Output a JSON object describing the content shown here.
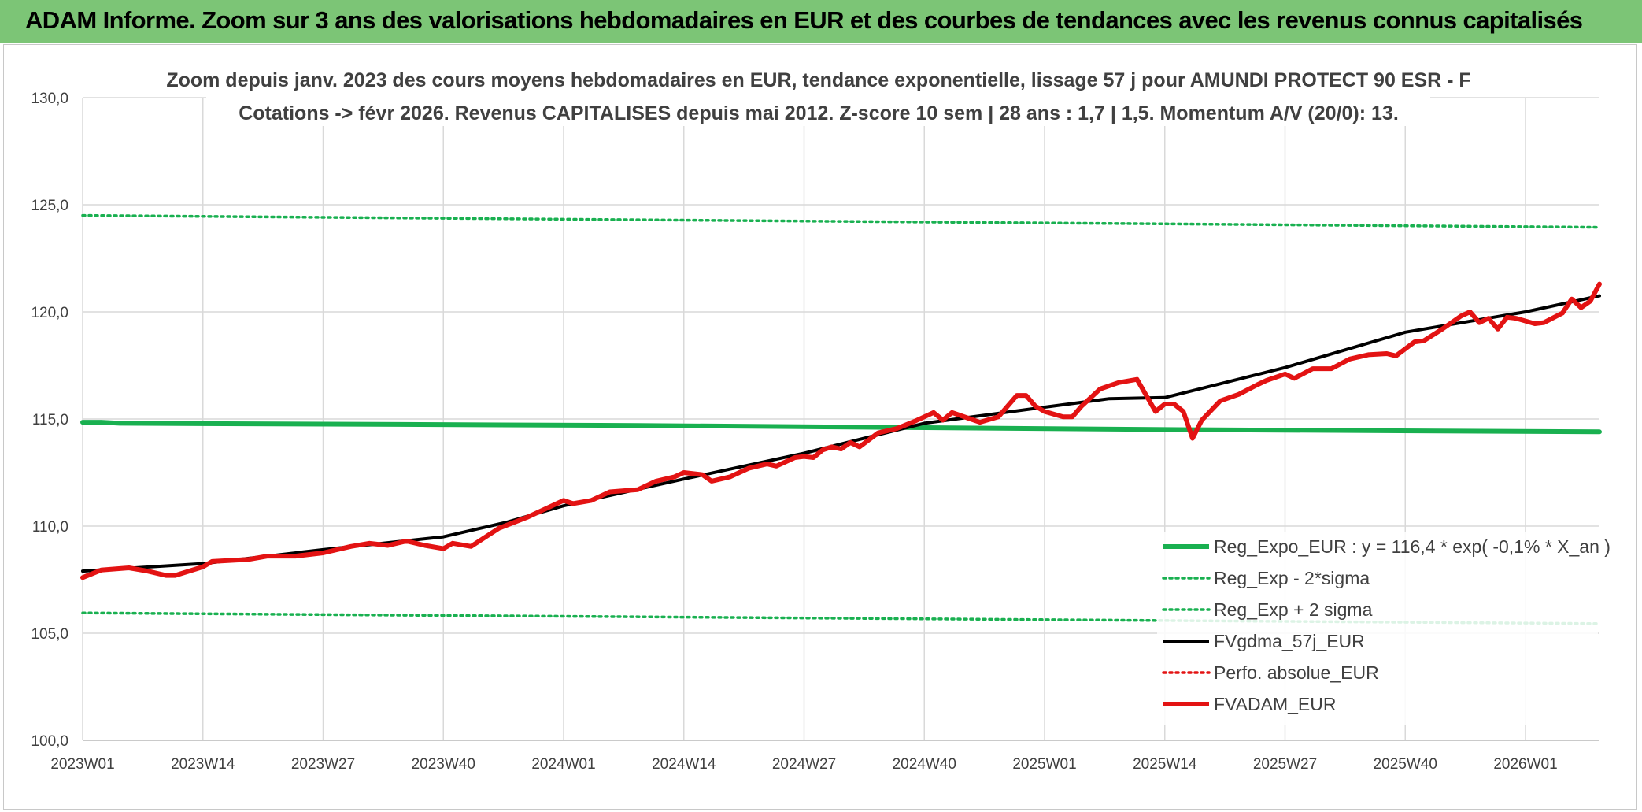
{
  "banner": {
    "title": "ADAM Informe. Zoom sur 3 ans des valorisations hebdomadaires en EUR et des courbes de tendances avec les revenus connus capitalisés"
  },
  "colors": {
    "banner_bg": "#7cc576",
    "trend_green": "#19b050",
    "smooth_black": "#000000",
    "price_red": "#e31313",
    "grid": "#d9d9d9"
  },
  "chart_data": {
    "type": "line",
    "title_line1": "Zoom depuis janv. 2023 des cours moyens hebdomadaires en EUR, tendance exponentielle, lissage 57 j pour AMUNDI PROTECT 90 ESR - F",
    "title_line2": "Cotations -> févr 2026. Revenus CAPITALISES depuis mai 2012. Z-score 10 sem | 28 ans : 1,7 | 1,5. Momentum A/V (20/0): 13.",
    "y_ticks": [
      "100,0",
      "105,0",
      "110,0",
      "115,0",
      "120,0",
      "125,0",
      "130,0"
    ],
    "ylim": [
      100,
      130
    ],
    "x_tick_labels": [
      "2023W01",
      "2023W14",
      "2023W27",
      "2023W40",
      "2024W01",
      "2024W14",
      "2024W27",
      "2024W40",
      "2025W01",
      "2025W14",
      "2025W27",
      "2025W40",
      "2026W01"
    ],
    "x_tick_index": [
      0,
      13,
      26,
      39,
      52,
      65,
      78,
      91,
      104,
      117,
      130,
      143,
      156
    ],
    "n_weeks": 165,
    "legend_position": "bottom-right",
    "grid": true,
    "series": [
      {
        "name": "Reg_Expo_EUR : y = 116,4 * exp( -0,1% *  X_an )",
        "style": "solid-thick",
        "color": "#19b050",
        "points": [
          [
            0,
            114.85
          ],
          [
            2,
            114.85
          ],
          [
            4,
            114.8
          ],
          [
            60,
            114.7
          ],
          [
            120,
            114.5
          ],
          [
            164,
            114.4
          ]
        ]
      },
      {
        "name": "Reg_Exp - 2*sigma",
        "style": "dotted",
        "color": "#19b050",
        "points": [
          [
            0,
            105.95
          ],
          [
            164,
            105.45
          ]
        ]
      },
      {
        "name": "Reg_Exp + 2 sigma",
        "style": "dotted",
        "color": "#19b050",
        "points": [
          [
            0,
            124.5
          ],
          [
            164,
            123.95
          ]
        ]
      },
      {
        "name": "FVgdma_57j_EUR",
        "style": "solid",
        "color": "#000000",
        "points": [
          [
            0,
            107.9
          ],
          [
            13,
            108.25
          ],
          [
            26,
            108.9
          ],
          [
            39,
            109.5
          ],
          [
            46,
            110.2
          ],
          [
            52,
            110.95
          ],
          [
            65,
            112.2
          ],
          [
            78,
            113.4
          ],
          [
            91,
            114.8
          ],
          [
            104,
            115.55
          ],
          [
            111,
            115.95
          ],
          [
            117,
            116.0
          ],
          [
            130,
            117.4
          ],
          [
            143,
            119.05
          ],
          [
            156,
            120.0
          ],
          [
            164,
            120.75
          ]
        ]
      },
      {
        "name": "Perfo. absolue_EUR",
        "style": "dotted",
        "color": "#e31313",
        "points": []
      },
      {
        "name": "FVADAM_EUR",
        "style": "solid-thick",
        "color": "#e31313",
        "points": [
          [
            0,
            107.6
          ],
          [
            2,
            107.95
          ],
          [
            5,
            108.05
          ],
          [
            7,
            107.9
          ],
          [
            9,
            107.7
          ],
          [
            10,
            107.7
          ],
          [
            13,
            108.1
          ],
          [
            14,
            108.35
          ],
          [
            18,
            108.45
          ],
          [
            20,
            108.6
          ],
          [
            23,
            108.6
          ],
          [
            26,
            108.75
          ],
          [
            29,
            109.05
          ],
          [
            31,
            109.2
          ],
          [
            33,
            109.1
          ],
          [
            35,
            109.3
          ],
          [
            37,
            109.1
          ],
          [
            39,
            108.95
          ],
          [
            40,
            109.2
          ],
          [
            42,
            109.05
          ],
          [
            45,
            109.9
          ],
          [
            48,
            110.4
          ],
          [
            52,
            111.2
          ],
          [
            53,
            111.05
          ],
          [
            55,
            111.2
          ],
          [
            57,
            111.6
          ],
          [
            60,
            111.7
          ],
          [
            62,
            112.1
          ],
          [
            64,
            112.3
          ],
          [
            65,
            112.5
          ],
          [
            67,
            112.4
          ],
          [
            68,
            112.1
          ],
          [
            70,
            112.3
          ],
          [
            72,
            112.7
          ],
          [
            74,
            112.9
          ],
          [
            75,
            112.8
          ],
          [
            77,
            113.2
          ],
          [
            78,
            113.25
          ],
          [
            79,
            113.2
          ],
          [
            80,
            113.55
          ],
          [
            81,
            113.7
          ],
          [
            82,
            113.6
          ],
          [
            83,
            113.9
          ],
          [
            84,
            113.7
          ],
          [
            86,
            114.35
          ],
          [
            88,
            114.55
          ],
          [
            90,
            114.9
          ],
          [
            92,
            115.3
          ],
          [
            93,
            114.95
          ],
          [
            94,
            115.3
          ],
          [
            96,
            115.0
          ],
          [
            97,
            114.85
          ],
          [
            99,
            115.1
          ],
          [
            101,
            116.1
          ],
          [
            102,
            116.1
          ],
          [
            103,
            115.6
          ],
          [
            104,
            115.35
          ],
          [
            106,
            115.1
          ],
          [
            107,
            115.1
          ],
          [
            108,
            115.6
          ],
          [
            110,
            116.4
          ],
          [
            112,
            116.7
          ],
          [
            114,
            116.85
          ],
          [
            116,
            115.35
          ],
          [
            117,
            115.7
          ],
          [
            118,
            115.7
          ],
          [
            119,
            115.35
          ],
          [
            120,
            114.1
          ],
          [
            121,
            114.95
          ],
          [
            123,
            115.85
          ],
          [
            125,
            116.15
          ],
          [
            127,
            116.6
          ],
          [
            128,
            116.8
          ],
          [
            130,
            117.1
          ],
          [
            131,
            116.9
          ],
          [
            133,
            117.35
          ],
          [
            135,
            117.35
          ],
          [
            137,
            117.8
          ],
          [
            139,
            118.0
          ],
          [
            141,
            118.05
          ],
          [
            142,
            117.95
          ],
          [
            144,
            118.6
          ],
          [
            145,
            118.65
          ],
          [
            147,
            119.2
          ],
          [
            149,
            119.8
          ],
          [
            150,
            120.0
          ],
          [
            151,
            119.5
          ],
          [
            152,
            119.7
          ],
          [
            153,
            119.2
          ],
          [
            154,
            119.75
          ],
          [
            155,
            119.7
          ],
          [
            157,
            119.45
          ],
          [
            158,
            119.5
          ],
          [
            160,
            119.95
          ],
          [
            161,
            120.6
          ],
          [
            162,
            120.2
          ],
          [
            163,
            120.5
          ],
          [
            164,
            121.3
          ]
        ]
      }
    ]
  }
}
